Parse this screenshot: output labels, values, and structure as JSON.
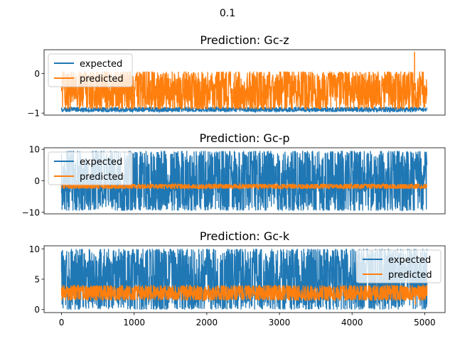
{
  "figure": {
    "suptitle": "0.1"
  },
  "colors": {
    "expected": "#1f77b4",
    "predicted": "#ff7f0e"
  },
  "chart_data": [
    {
      "type": "line",
      "title": "Prediction: Gc-z",
      "xlabel": "",
      "ylabel": "",
      "xlim": [
        -240,
        5280
      ],
      "ylim": [
        -1.05,
        0.6
      ],
      "yticks": [
        -1,
        0
      ],
      "ytick_labels": [
        "−1",
        "0"
      ],
      "show_xticks": false,
      "legend": {
        "placement": "top-left",
        "entries": [
          "expected",
          "predicted"
        ]
      },
      "series": [
        {
          "name": "expected",
          "color": "#1f77b4",
          "x_range": [
            0,
            5030
          ],
          "band": [
            -0.97,
            -0.85
          ],
          "spikes": []
        },
        {
          "name": "predicted",
          "color": "#ff7f0e",
          "x_range": [
            0,
            5030
          ],
          "band": [
            -0.9,
            0.05
          ],
          "spikes": [
            [
              4860,
              0.55
            ]
          ]
        }
      ]
    },
    {
      "type": "line",
      "title": "Prediction: Gc-p",
      "xlabel": "",
      "ylabel": "",
      "xlim": [
        -240,
        5280
      ],
      "ylim": [
        -10.5,
        10.5
      ],
      "yticks": [
        10,
        0,
        -10
      ],
      "ytick_labels": [
        "10",
        "0",
        "−10"
      ],
      "show_xticks": false,
      "legend": {
        "placement": "top-left",
        "entries": [
          "expected",
          "predicted"
        ]
      },
      "series": [
        {
          "name": "expected",
          "color": "#1f77b4",
          "x_range": [
            0,
            5030
          ],
          "band": [
            -9.5,
            9.5
          ],
          "spikes": [
            [
              1230,
              8.9
            ],
            [
              3320,
              9.5
            ],
            [
              4760,
              -9.5
            ]
          ]
        },
        {
          "name": "predicted",
          "color": "#ff7f0e",
          "x_range": [
            0,
            5030
          ],
          "band": [
            -2.5,
            -1.0
          ],
          "spikes": []
        }
      ]
    },
    {
      "type": "line",
      "title": "Prediction: Gc-k",
      "xlabel": "",
      "ylabel": "",
      "xlim": [
        -240,
        5280
      ],
      "ylim": [
        -0.5,
        10.5
      ],
      "yticks": [
        10,
        5,
        0
      ],
      "ytick_labels": [
        "10",
        "5",
        "0"
      ],
      "xticks": [
        0,
        1000,
        2000,
        3000,
        4000,
        5000
      ],
      "xtick_labels": [
        "0",
        "1000",
        "2000",
        "3000",
        "4000",
        "5000"
      ],
      "show_xticks": true,
      "legend": {
        "placement": "top-right",
        "entries": [
          "expected",
          "predicted"
        ]
      },
      "series": [
        {
          "name": "expected",
          "color": "#1f77b4",
          "x_range": [
            0,
            5030
          ],
          "band": [
            0,
            10
          ],
          "spikes": []
        },
        {
          "name": "predicted",
          "color": "#ff7f0e",
          "x_range": [
            0,
            5030
          ],
          "band": [
            1.5,
            4.0
          ],
          "spikes": [
            [
              4870,
              0.8
            ]
          ]
        }
      ]
    }
  ]
}
